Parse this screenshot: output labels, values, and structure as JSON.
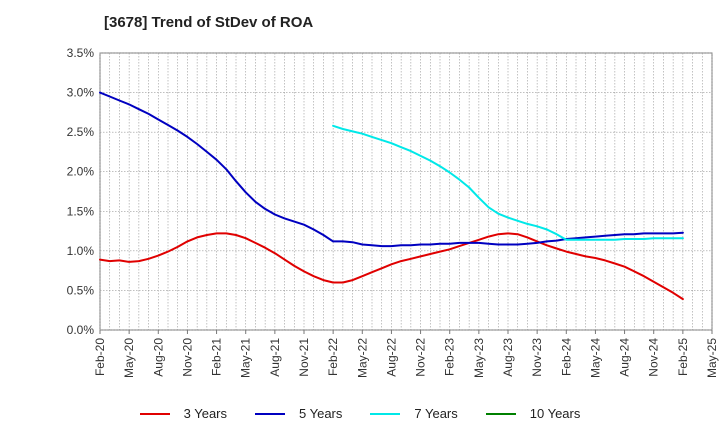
{
  "title": "[3678]  Trend of StDev of ROA",
  "chart_data": {
    "type": "line",
    "title": "[3678]  Trend of StDev of ROA",
    "xlabel": "",
    "ylabel": "",
    "x_ticks": [
      "Feb-20",
      "May-20",
      "Aug-20",
      "Nov-20",
      "Feb-21",
      "May-21",
      "Aug-21",
      "Nov-21",
      "Feb-22",
      "May-22",
      "Aug-22",
      "Nov-22",
      "Feb-23",
      "May-23",
      "Aug-23",
      "Nov-23",
      "Feb-24",
      "May-24",
      "Aug-24",
      "Nov-24",
      "Feb-25",
      "May-25"
    ],
    "y_ticks": [
      "0.0%",
      "0.5%",
      "1.0%",
      "1.5%",
      "2.0%",
      "2.5%",
      "3.0%",
      "3.5%"
    ],
    "ylim": [
      0,
      3.5
    ],
    "grid": true,
    "legend_position": "bottom",
    "series": [
      {
        "name": "3 Years",
        "color": "#e00000",
        "x": [
          "Feb-20",
          "Mar-20",
          "Apr-20",
          "May-20",
          "Jun-20",
          "Jul-20",
          "Aug-20",
          "Sep-20",
          "Oct-20",
          "Nov-20",
          "Dec-20",
          "Jan-21",
          "Feb-21",
          "Mar-21",
          "Apr-21",
          "May-21",
          "Jun-21",
          "Jul-21",
          "Aug-21",
          "Sep-21",
          "Oct-21",
          "Nov-21",
          "Dec-21",
          "Jan-22",
          "Feb-22",
          "Mar-22",
          "Apr-22",
          "May-22",
          "Jun-22",
          "Jul-22",
          "Aug-22",
          "Sep-22",
          "Oct-22",
          "Nov-22",
          "Dec-22",
          "Jan-23",
          "Feb-23",
          "Mar-23",
          "Apr-23",
          "May-23",
          "Jun-23",
          "Jul-23",
          "Aug-23",
          "Sep-23",
          "Oct-23",
          "Nov-23",
          "Dec-23",
          "Jan-24",
          "Feb-24",
          "Mar-24",
          "Apr-24",
          "May-24",
          "Jun-24",
          "Jul-24",
          "Aug-24",
          "Sep-24",
          "Oct-24",
          "Nov-24",
          "Dec-24",
          "Jan-25",
          "Feb-25"
        ],
        "values": [
          0.89,
          0.87,
          0.88,
          0.86,
          0.87,
          0.9,
          0.94,
          0.99,
          1.05,
          1.12,
          1.17,
          1.2,
          1.22,
          1.22,
          1.2,
          1.16,
          1.1,
          1.04,
          0.97,
          0.89,
          0.81,
          0.74,
          0.68,
          0.63,
          0.6,
          0.6,
          0.63,
          0.68,
          0.73,
          0.78,
          0.83,
          0.87,
          0.9,
          0.93,
          0.96,
          0.99,
          1.02,
          1.06,
          1.1,
          1.14,
          1.18,
          1.21,
          1.22,
          1.21,
          1.17,
          1.12,
          1.07,
          1.03,
          0.99,
          0.96,
          0.93,
          0.91,
          0.88,
          0.84,
          0.8,
          0.74,
          0.68,
          0.61,
          0.54,
          0.47,
          0.39
        ]
      },
      {
        "name": "5 Years",
        "color": "#0000c0",
        "x": [
          "Feb-20",
          "Mar-20",
          "Apr-20",
          "May-20",
          "Jun-20",
          "Jul-20",
          "Aug-20",
          "Sep-20",
          "Oct-20",
          "Nov-20",
          "Dec-20",
          "Jan-21",
          "Feb-21",
          "Mar-21",
          "Apr-21",
          "May-21",
          "Jun-21",
          "Jul-21",
          "Aug-21",
          "Sep-21",
          "Oct-21",
          "Nov-21",
          "Dec-21",
          "Jan-22",
          "Feb-22",
          "Mar-22",
          "Apr-22",
          "May-22",
          "Jun-22",
          "Jul-22",
          "Aug-22",
          "Sep-22",
          "Oct-22",
          "Nov-22",
          "Dec-22",
          "Jan-23",
          "Feb-23",
          "Mar-23",
          "Apr-23",
          "May-23",
          "Jun-23",
          "Jul-23",
          "Aug-23",
          "Sep-23",
          "Oct-23",
          "Nov-23",
          "Dec-23",
          "Jan-24",
          "Feb-24",
          "Mar-24",
          "Apr-24",
          "May-24",
          "Jun-24",
          "Jul-24",
          "Aug-24",
          "Sep-24",
          "Oct-24",
          "Nov-24",
          "Dec-24",
          "Jan-25",
          "Feb-25"
        ],
        "values": [
          3.0,
          2.95,
          2.9,
          2.85,
          2.79,
          2.73,
          2.66,
          2.59,
          2.52,
          2.44,
          2.35,
          2.25,
          2.15,
          2.03,
          1.88,
          1.74,
          1.62,
          1.53,
          1.46,
          1.41,
          1.37,
          1.33,
          1.27,
          1.2,
          1.12,
          1.12,
          1.11,
          1.08,
          1.07,
          1.06,
          1.06,
          1.07,
          1.07,
          1.08,
          1.08,
          1.09,
          1.09,
          1.1,
          1.1,
          1.1,
          1.09,
          1.08,
          1.08,
          1.08,
          1.09,
          1.1,
          1.12,
          1.13,
          1.15,
          1.16,
          1.17,
          1.18,
          1.19,
          1.2,
          1.21,
          1.21,
          1.22,
          1.22,
          1.22,
          1.22,
          1.23
        ]
      },
      {
        "name": "7 Years",
        "color": "#00e8e8",
        "x": [
          "Feb-22",
          "Mar-22",
          "Apr-22",
          "May-22",
          "Jun-22",
          "Jul-22",
          "Aug-22",
          "Sep-22",
          "Oct-22",
          "Nov-22",
          "Dec-22",
          "Jan-23",
          "Feb-23",
          "Mar-23",
          "Apr-23",
          "May-23",
          "Jun-23",
          "Jul-23",
          "Aug-23",
          "Sep-23",
          "Oct-23",
          "Nov-23",
          "Dec-23",
          "Jan-24",
          "Feb-24",
          "Mar-24",
          "Apr-24",
          "May-24",
          "Jun-24",
          "Jul-24",
          "Aug-24",
          "Sep-24",
          "Oct-24",
          "Nov-24",
          "Dec-24",
          "Jan-25",
          "Feb-25"
        ],
        "values": [
          2.58,
          2.54,
          2.51,
          2.48,
          2.44,
          2.4,
          2.36,
          2.31,
          2.26,
          2.2,
          2.14,
          2.07,
          1.99,
          1.9,
          1.8,
          1.67,
          1.55,
          1.47,
          1.42,
          1.38,
          1.34,
          1.31,
          1.27,
          1.21,
          1.14,
          1.14,
          1.14,
          1.14,
          1.14,
          1.14,
          1.15,
          1.15,
          1.15,
          1.16,
          1.16,
          1.16,
          1.16
        ]
      },
      {
        "name": "10 Years",
        "color": "#008000",
        "x": [],
        "values": []
      }
    ]
  }
}
